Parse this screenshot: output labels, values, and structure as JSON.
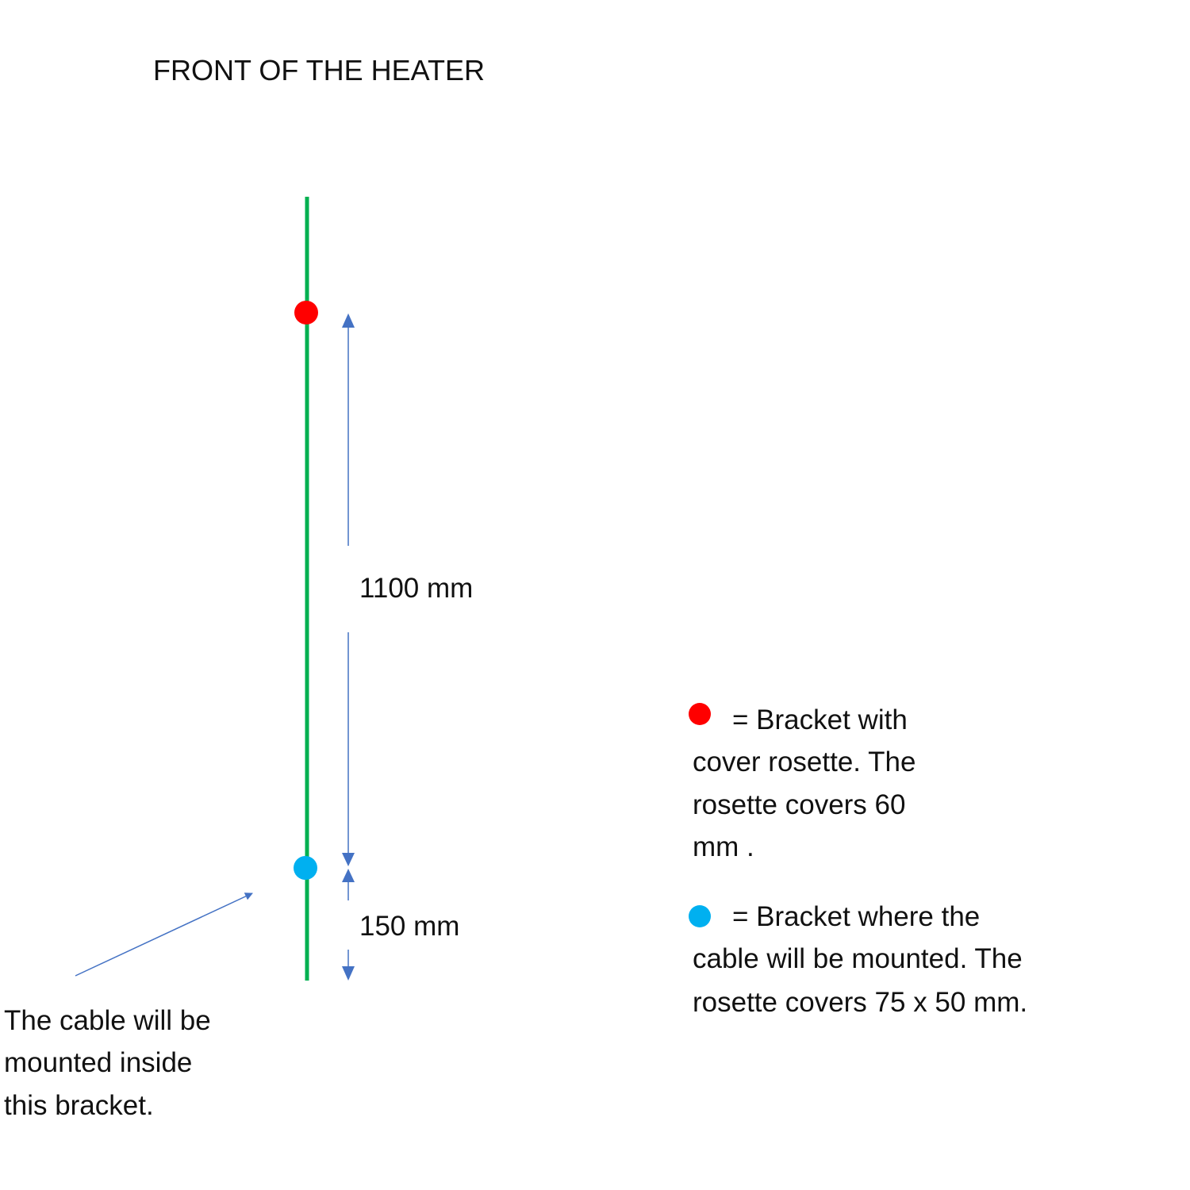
{
  "title": "FRONT OF THE HEATER",
  "colors": {
    "heater_line": "#00b050",
    "bracket_cover_rosette": "#ff0000",
    "bracket_cable": "#00b0f0",
    "dimension_arrows": "#4472c4",
    "text": "#111111"
  },
  "dimensions": {
    "upper": "1100 mm",
    "lower": "150 mm"
  },
  "cable_note": {
    "lines": [
      "The cable will be",
      "mounted inside",
      "this bracket."
    ]
  },
  "legend": {
    "items": [
      {
        "marker": "red-dot",
        "lines": [
          "= Bracket with",
          "cover rosette. The",
          "rosette covers 60",
          "mm ."
        ]
      },
      {
        "marker": "blue-dot",
        "lines": [
          "= Bracket where the",
          "cable will be mounted. The",
          "rosette covers 75 x 50 mm."
        ]
      }
    ]
  }
}
